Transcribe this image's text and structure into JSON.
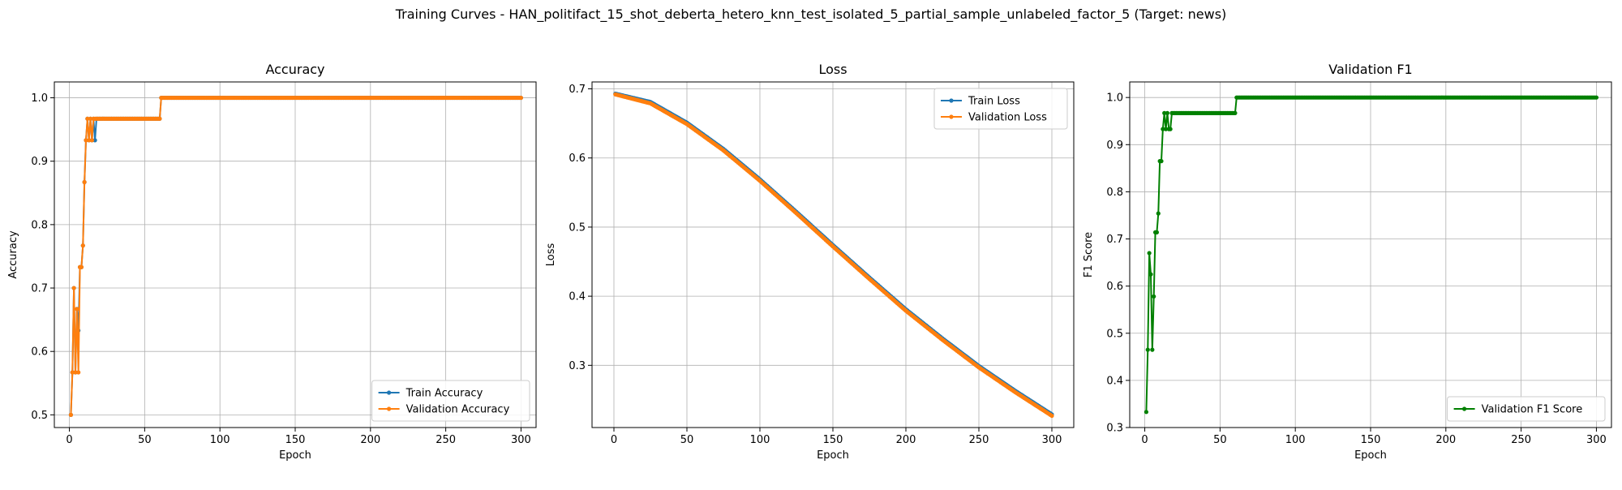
{
  "figure": {
    "title": "Training Curves - HAN_politifact_15_shot_deberta_hetero_knn_test_isolated_5_partial_sample_unlabeled_factor_5 (Target: news)"
  },
  "colors": {
    "train": "#1f77b4",
    "validation": "#ff7f0e",
    "f1": "#008000",
    "grid": "#b0b0b0"
  },
  "chart_data": [
    {
      "type": "line",
      "title": "Accuracy",
      "xlabel": "Epoch",
      "ylabel": "Accuracy",
      "xlim": [
        -10,
        310
      ],
      "ylim": [
        0.48,
        1.025
      ],
      "xticks": [
        0,
        50,
        100,
        150,
        200,
        250,
        300
      ],
      "yticks": [
        0.5,
        0.6,
        0.7,
        0.8,
        0.9,
        1.0
      ],
      "ytick_labels": [
        "0.5",
        "0.6",
        "0.7",
        "0.8",
        "0.9",
        "1.0"
      ],
      "grid": true,
      "legend": "lower right",
      "series": [
        {
          "name": "Train Accuracy",
          "color": "#1f77b4",
          "points": [
            [
              1,
              0.5
            ],
            [
              2,
              0.567
            ],
            [
              3,
              0.7
            ],
            [
              4,
              0.567
            ],
            [
              5,
              0.667
            ],
            [
              6,
              0.633
            ],
            [
              7,
              0.733
            ],
            [
              8,
              0.733
            ],
            [
              9,
              0.767
            ],
            [
              10,
              0.867
            ],
            [
              11,
              0.933
            ],
            [
              12,
              0.967
            ],
            [
              13,
              0.933
            ],
            [
              14,
              0.967
            ],
            [
              15,
              0.933
            ],
            [
              16,
              0.967
            ],
            [
              17,
              0.933
            ],
            [
              18,
              0.967
            ],
            [
              60,
              0.967
            ],
            [
              61,
              1.0
            ],
            [
              300,
              1.0
            ]
          ]
        },
        {
          "name": "Validation Accuracy",
          "color": "#ff7f0e",
          "points": [
            [
              1,
              0.5
            ],
            [
              2,
              0.567
            ],
            [
              3,
              0.7
            ],
            [
              4,
              0.567
            ],
            [
              5,
              0.667
            ],
            [
              6,
              0.567
            ],
            [
              7,
              0.733
            ],
            [
              8,
              0.733
            ],
            [
              9,
              0.767
            ],
            [
              10,
              0.867
            ],
            [
              11,
              0.933
            ],
            [
              12,
              0.967
            ],
            [
              13,
              0.933
            ],
            [
              14,
              0.967
            ],
            [
              15,
              0.933
            ],
            [
              16,
              0.967
            ],
            [
              17,
              0.967
            ],
            [
              60,
              0.967
            ],
            [
              61,
              1.0
            ],
            [
              300,
              1.0
            ]
          ]
        }
      ]
    },
    {
      "type": "line",
      "title": "Loss",
      "xlabel": "Epoch",
      "ylabel": "Loss",
      "xlim": [
        -15,
        315
      ],
      "ylim": [
        0.21,
        0.71
      ],
      "xticks": [
        0,
        50,
        100,
        150,
        200,
        250,
        300
      ],
      "yticks": [
        0.3,
        0.4,
        0.5,
        0.6,
        0.7
      ],
      "ytick_labels": [
        "0.3",
        "0.4",
        "0.5",
        "0.6",
        "0.7"
      ],
      "grid": true,
      "legend": "upper right",
      "series": [
        {
          "name": "Train Loss",
          "color": "#1f77b4",
          "points": [
            [
              1,
              0.693
            ],
            [
              25,
              0.681
            ],
            [
              50,
              0.651
            ],
            [
              75,
              0.613
            ],
            [
              100,
              0.569
            ],
            [
              125,
              0.522
            ],
            [
              150,
              0.474
            ],
            [
              175,
              0.427
            ],
            [
              200,
              0.381
            ],
            [
              225,
              0.339
            ],
            [
              250,
              0.299
            ],
            [
              275,
              0.263
            ],
            [
              300,
              0.229
            ]
          ]
        },
        {
          "name": "Validation Loss",
          "color": "#ff7f0e",
          "points": [
            [
              1,
              0.692
            ],
            [
              25,
              0.679
            ],
            [
              50,
              0.649
            ],
            [
              75,
              0.611
            ],
            [
              100,
              0.567
            ],
            [
              125,
              0.52
            ],
            [
              150,
              0.472
            ],
            [
              175,
              0.425
            ],
            [
              200,
              0.379
            ],
            [
              225,
              0.337
            ],
            [
              250,
              0.297
            ],
            [
              275,
              0.261
            ],
            [
              300,
              0.227
            ]
          ]
        }
      ]
    },
    {
      "type": "line",
      "title": "Validation F1",
      "xlabel": "Epoch",
      "ylabel": "F1 Score",
      "xlim": [
        -10,
        310
      ],
      "ylim": [
        0.3,
        1.033
      ],
      "xticks": [
        0,
        50,
        100,
        150,
        200,
        250,
        300
      ],
      "yticks": [
        0.3,
        0.4,
        0.5,
        0.6,
        0.7,
        0.8,
        0.9,
        1.0
      ],
      "ytick_labels": [
        "0.3",
        "0.4",
        "0.5",
        "0.6",
        "0.7",
        "0.8",
        "0.9",
        "1.0"
      ],
      "grid": true,
      "legend": "lower right",
      "series": [
        {
          "name": "Validation F1 Score",
          "color": "#008000",
          "points": [
            [
              1,
              0.333
            ],
            [
              2,
              0.465
            ],
            [
              3,
              0.67
            ],
            [
              4,
              0.625
            ],
            [
              5,
              0.465
            ],
            [
              6,
              0.578
            ],
            [
              7,
              0.714
            ],
            [
              8,
              0.714
            ],
            [
              9,
              0.754
            ],
            [
              10,
              0.865
            ],
            [
              11,
              0.865
            ],
            [
              12,
              0.933
            ],
            [
              13,
              0.967
            ],
            [
              14,
              0.933
            ],
            [
              15,
              0.967
            ],
            [
              16,
              0.933
            ],
            [
              17,
              0.933
            ],
            [
              18,
              0.967
            ],
            [
              60,
              0.967
            ],
            [
              61,
              1.0
            ],
            [
              300,
              1.0
            ]
          ]
        }
      ]
    }
  ]
}
